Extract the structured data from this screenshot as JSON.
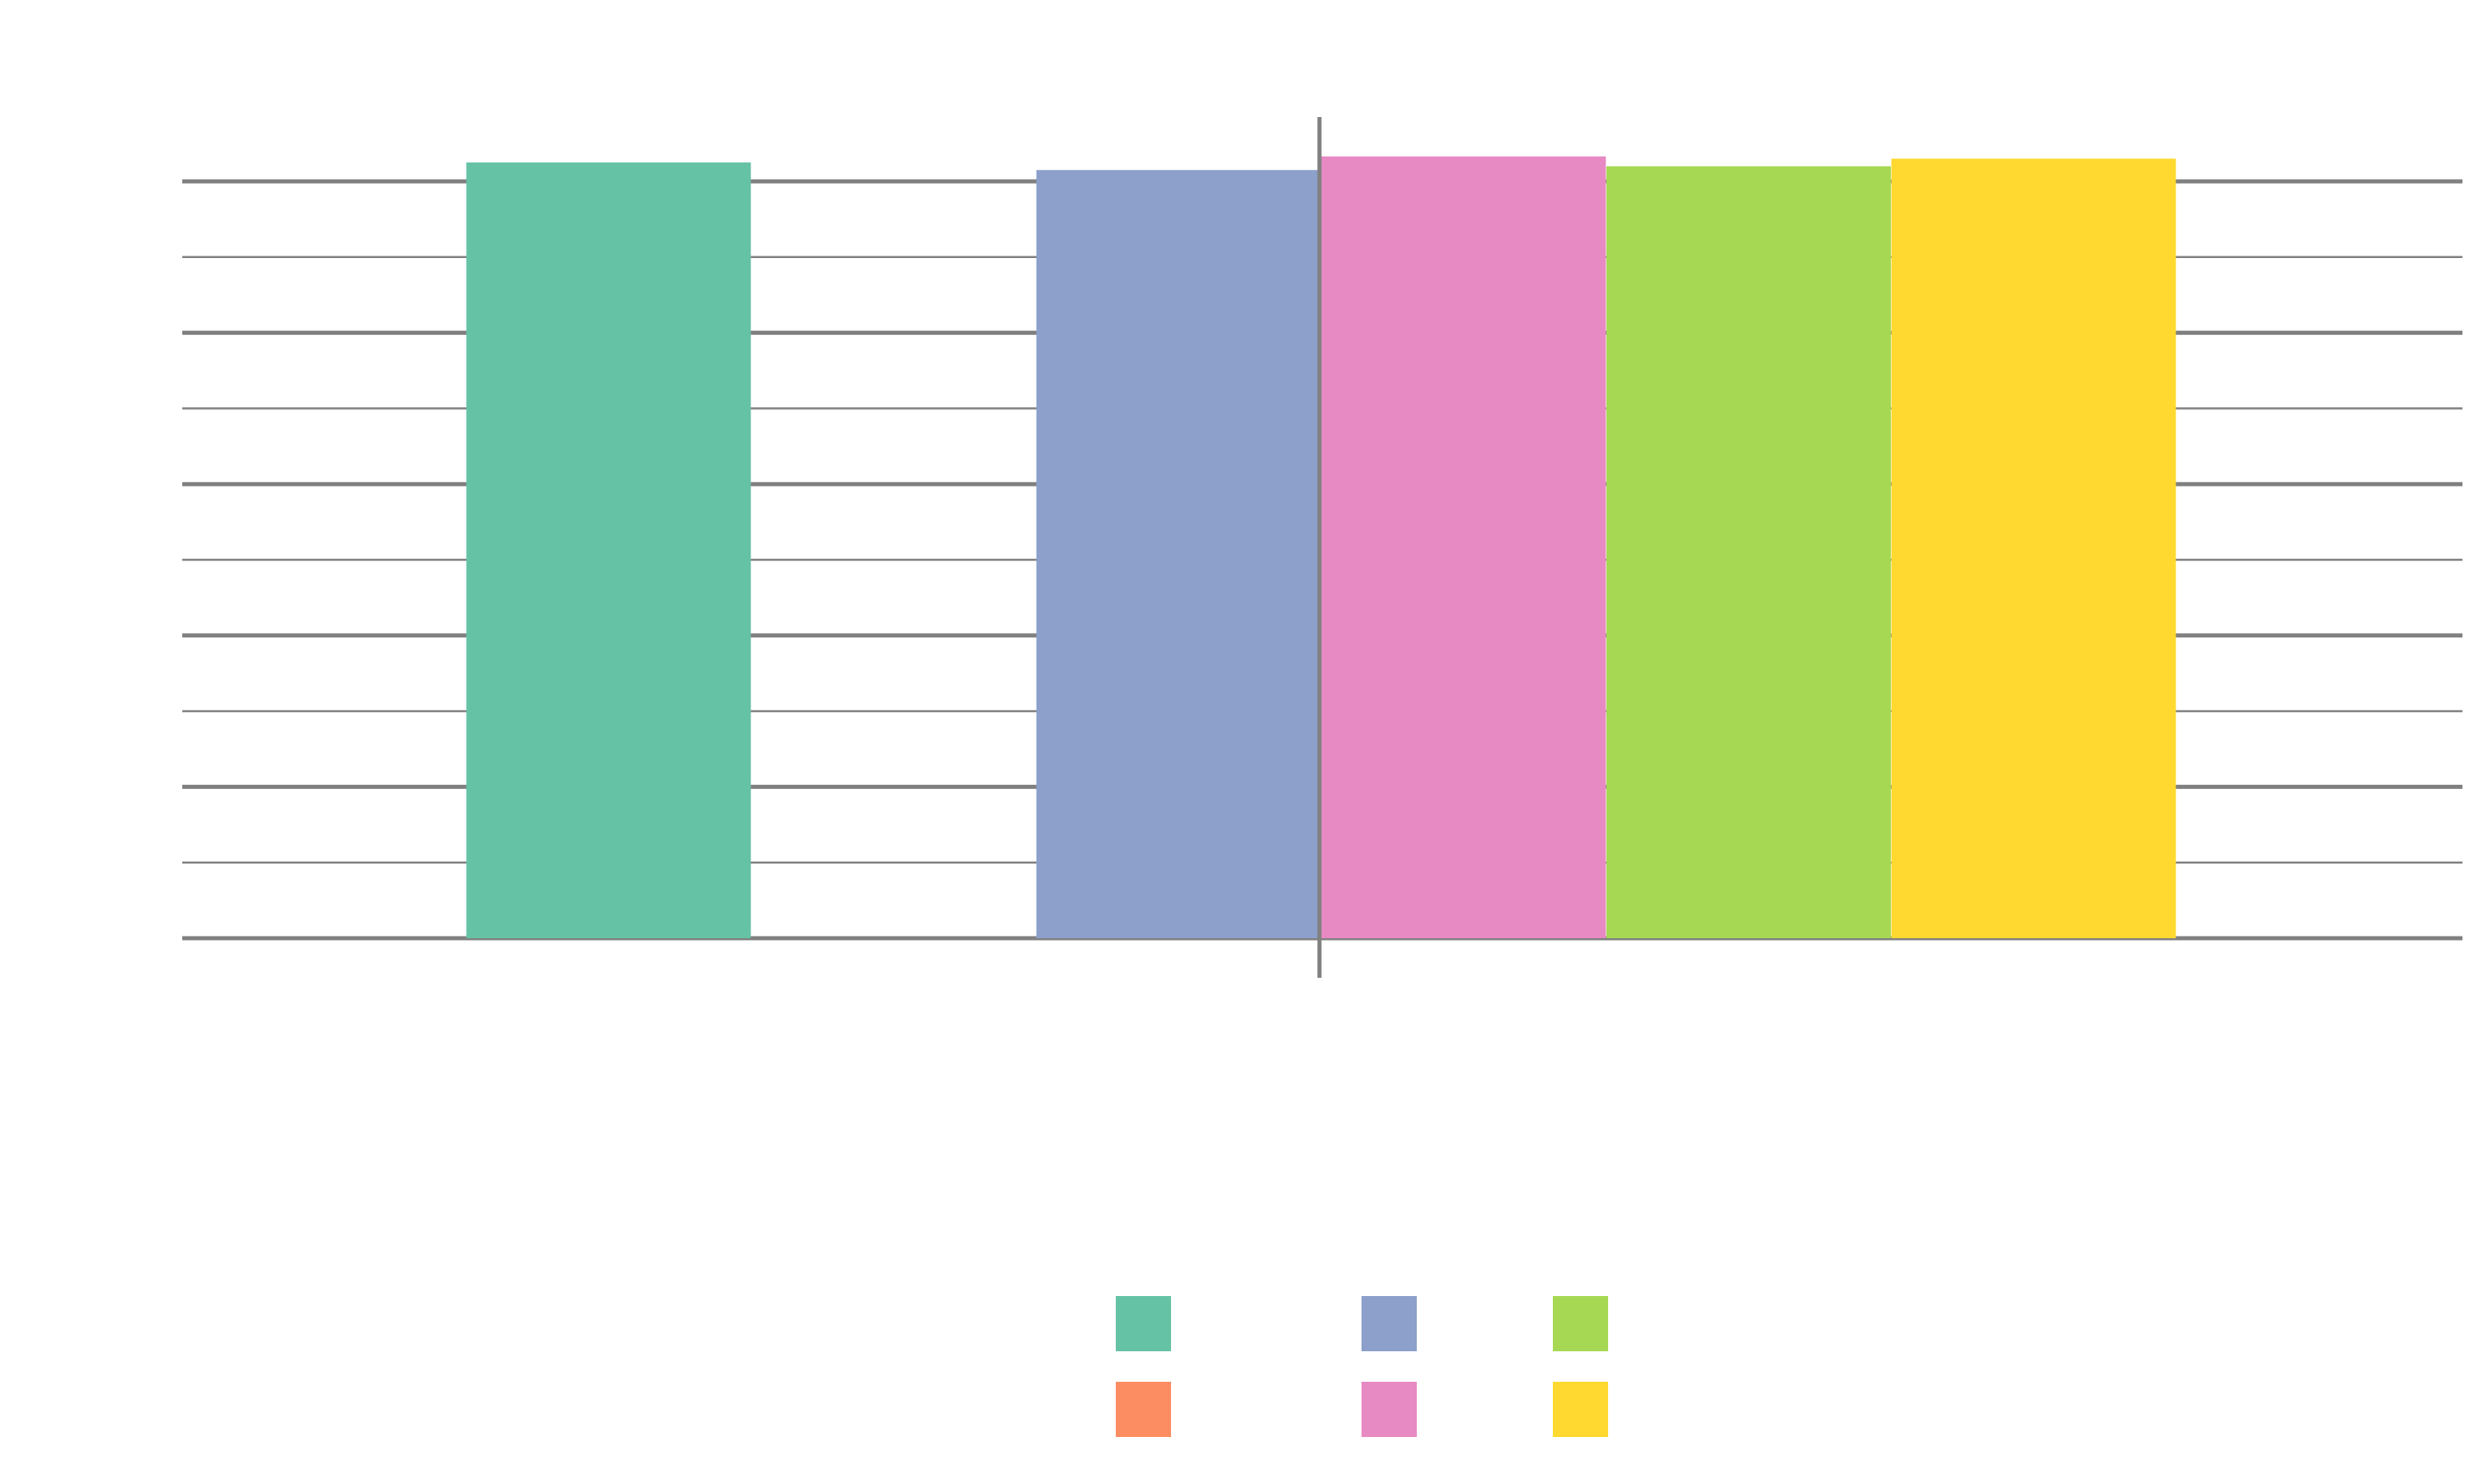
{
  "chart_data": {
    "type": "bar",
    "title": "",
    "xlabel": "",
    "ylabel": "",
    "ylim": [
      0,
      10
    ],
    "yticks": [
      0,
      1,
      2,
      3,
      4,
      5,
      6,
      7,
      8,
      9,
      10
    ],
    "major_ytick_step": 2,
    "grid": true,
    "tick_labels_visible": false,
    "legend_position": "bottom-center",
    "legend_columns": 3,
    "series": [
      {
        "color": "#66c2a5",
        "value": 10.25,
        "position": 1
      },
      {
        "color": "#fc8d62",
        "value": null,
        "position": 2
      },
      {
        "color": "#8da0cb",
        "value": 10.15,
        "position": 3
      },
      {
        "color": "#e78ac3",
        "value": 10.33,
        "position": 4
      },
      {
        "color": "#a6d854",
        "value": 10.2,
        "position": 5
      },
      {
        "color": "#ffd92f",
        "value": 10.3,
        "position": 6
      }
    ]
  }
}
